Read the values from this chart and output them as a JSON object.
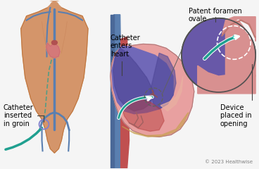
{
  "background_color": "#f5f5f5",
  "copyright_text": "© 2023 Healthwise",
  "labels": {
    "catheter_groin": "Catheter\ninserted\nin groin",
    "catheter_heart": "Catheter\nenters\nheart",
    "patent_foramen": "Patent foramen\novale",
    "device_placed": "Device\nplaced in\nopening"
  },
  "skin_light": "#D4956A",
  "skin_shadow": "#C07840",
  "skin_mid": "#C8845A",
  "vein_blue": "#5A7FB0",
  "artery_red": "#C05050",
  "catheter_teal": "#20A090",
  "heart_pink_outer": "#E8A0A0",
  "heart_purple": "#7068B8",
  "heart_dark_purple": "#504898",
  "heart_red_ventricle": "#C84848",
  "heart_peach": "#E8B0A0",
  "zoom_bg_purple": "#6858A8",
  "zoom_tissue_pink": "#D89090",
  "zoom_dark_tissue": "#C07870",
  "label_line_color": "#404040",
  "label_font_size": 7,
  "copyright_font_size": 5,
  "gold_trim": "#C8A050"
}
